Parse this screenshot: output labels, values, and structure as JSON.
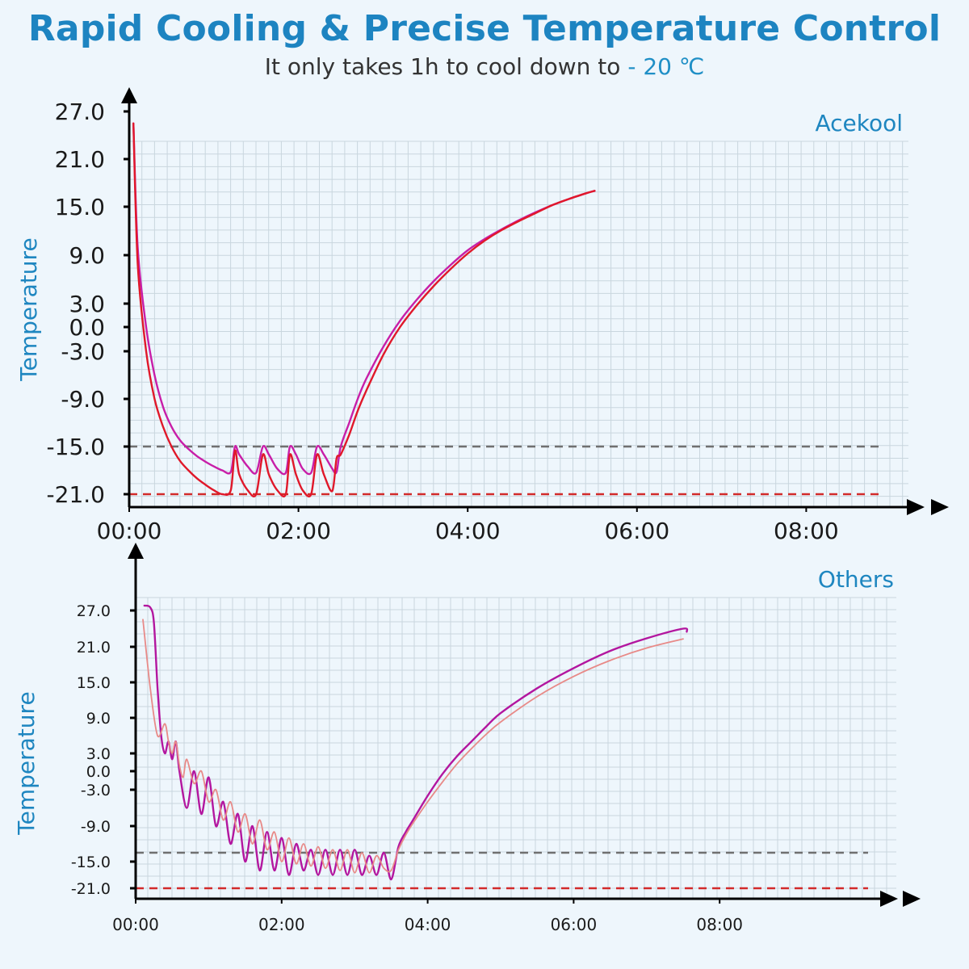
{
  "header": {
    "title": "Rapid Cooling & Precise Temperature Control",
    "subtitle_prefix": "It only takes 1h to cool down to ",
    "subtitle_highlight": "- 20 ℃"
  },
  "colors": {
    "accent": "#1e86c0",
    "grid": "#c9d6de",
    "reference_upper": "#707070",
    "reference_lower": "#d22a2a",
    "acekool_series_a": "#c81ea8",
    "acekool_series_b": "#e0182a",
    "others_series_a": "#b3169f",
    "others_series_b": "#e88a88"
  },
  "chart_data": [
    {
      "type": "line",
      "title": "Acekool",
      "ylabel": "Temperature",
      "xlabel": "",
      "x_unit": "hours",
      "xlim": [
        0,
        9
      ],
      "x_ticks": [
        0,
        2,
        4,
        6,
        8
      ],
      "x_tick_labels": [
        "00:00",
        "02:00",
        "04:00",
        "06:00",
        "08:00"
      ],
      "y_ticks": [
        27.0,
        21.0,
        15.0,
        9.0,
        3.0,
        0.0,
        -3.0,
        -9.0,
        -15.0,
        -21.0
      ],
      "y_tick_labels": [
        "27.0",
        "21.0",
        "15.0",
        "9.0",
        "3.0",
        "0.0",
        "-3.0",
        "-9.0",
        "-15.0",
        "-21.0"
      ],
      "reference_lines": [
        -15.0,
        -21.0
      ],
      "grid": true,
      "series": [
        {
          "color": "#c81ea8",
          "x": [
            0.05,
            0.1,
            0.2,
            0.3,
            0.4,
            0.5,
            0.6,
            0.7,
            0.8,
            0.9,
            1.0,
            1.1,
            1.2,
            1.25,
            1.3,
            1.4,
            1.5,
            1.58,
            1.65,
            1.75,
            1.85,
            1.9,
            1.97,
            2.05,
            2.15,
            2.22,
            2.3,
            2.4,
            2.45,
            2.5,
            2.6,
            2.7,
            2.8,
            3.0,
            3.2,
            3.4,
            3.6,
            3.8,
            4.0,
            4.2,
            4.4,
            4.6,
            4.8,
            5.0,
            5.2,
            5.4,
            5.5
          ],
          "values": [
            25.5,
            10,
            0,
            -6,
            -10,
            -12.5,
            -14.2,
            -15.3,
            -16.2,
            -16.9,
            -17.5,
            -18,
            -18.2,
            -15,
            -16,
            -17.5,
            -18.3,
            -15,
            -16,
            -17.8,
            -18.3,
            -15,
            -16,
            -17.8,
            -18.3,
            -15,
            -16,
            -17.8,
            -18.2,
            -15,
            -12,
            -9,
            -6.5,
            -2.5,
            0.8,
            3.5,
            5.8,
            7.8,
            9.6,
            11.0,
            12.2,
            13.3,
            14.3,
            15.2,
            16.0,
            16.7,
            17.0
          ]
        },
        {
          "color": "#e0182a",
          "x": [
            0.05,
            0.1,
            0.2,
            0.3,
            0.4,
            0.5,
            0.6,
            0.7,
            0.8,
            0.9,
            1.0,
            1.1,
            1.2,
            1.25,
            1.3,
            1.4,
            1.5,
            1.58,
            1.65,
            1.75,
            1.85,
            1.9,
            1.97,
            2.05,
            2.15,
            2.22,
            2.3,
            2.4,
            2.45,
            2.5,
            2.6,
            2.7,
            2.8,
            3.0,
            3.2,
            3.4,
            3.6,
            3.8,
            4.0,
            4.2,
            4.4,
            4.6,
            4.8,
            5.0,
            5.2,
            5.4,
            5.5
          ],
          "values": [
            25.5,
            8,
            -3,
            -9,
            -12.5,
            -15,
            -16.8,
            -18,
            -19,
            -19.8,
            -20.5,
            -21.0,
            -20.5,
            -15.5,
            -18.5,
            -20.5,
            -21.0,
            -16.0,
            -18.5,
            -20.5,
            -21.0,
            -16.0,
            -18.5,
            -20.5,
            -21.0,
            -16.0,
            -18.5,
            -20.6,
            -16.5,
            -16.0,
            -13.5,
            -10.5,
            -8.0,
            -3.5,
            0.0,
            2.8,
            5.2,
            7.3,
            9.2,
            10.8,
            12.1,
            13.2,
            14.2,
            15.2,
            16.0,
            16.7,
            17.0
          ]
        }
      ]
    },
    {
      "type": "line",
      "title": "Others",
      "ylabel": "Temperature",
      "xlabel": "",
      "x_unit": "hours",
      "xlim": [
        0,
        10
      ],
      "x_ticks": [
        0,
        2,
        4,
        6,
        8
      ],
      "x_tick_labels": [
        "00:00",
        "02:00",
        "04:00",
        "06:00",
        "08:00"
      ],
      "y_ticks": [
        27.0,
        21.0,
        15.0,
        9.0,
        3.0,
        0.0,
        -3.0,
        -9.0,
        -15.0,
        -21.0
      ],
      "y_tick_labels": [
        "27.0",
        "21.0",
        "15.0",
        "9.0",
        "3.0",
        "0.0",
        "-3.0",
        "-9.0",
        "-15.0",
        "-21.0"
      ],
      "reference_lines": [
        -13.5,
        -21.0
      ],
      "grid": true,
      "series": [
        {
          "color": "#b3169f",
          "x": [
            0.12,
            0.2,
            0.25,
            0.3,
            0.35,
            0.4,
            0.45,
            0.5,
            0.55,
            0.6,
            0.7,
            0.8,
            0.9,
            1.0,
            1.1,
            1.2,
            1.3,
            1.4,
            1.5,
            1.6,
            1.7,
            1.8,
            1.9,
            2.0,
            2.1,
            2.2,
            2.3,
            2.4,
            2.5,
            2.6,
            2.7,
            2.8,
            2.9,
            3.0,
            3.1,
            3.2,
            3.3,
            3.4,
            3.5,
            3.6,
            3.7,
            3.8,
            4.0,
            4.2,
            4.4,
            4.6,
            4.8,
            5.0,
            5.5,
            6.0,
            6.5,
            7.0,
            7.5,
            7.55
          ],
          "values": [
            27.8,
            27.5,
            25.0,
            14.0,
            6.0,
            3.0,
            5.0,
            2.0,
            5.0,
            0.0,
            -6.0,
            0.0,
            -7.0,
            -1.0,
            -9.0,
            -5.0,
            -12.0,
            -7.0,
            -15.0,
            -9.0,
            -17.0,
            -10.0,
            -17.0,
            -11.0,
            -18.0,
            -12.0,
            -17.0,
            -13.0,
            -18.0,
            -13.0,
            -18.0,
            -13.0,
            -18.0,
            -13.0,
            -18.0,
            -14.0,
            -18.0,
            -13.5,
            -19.0,
            -12.5,
            -10.0,
            -8.0,
            -4.0,
            -0.5,
            2.5,
            5.0,
            7.5,
            9.8,
            14.0,
            17.4,
            20.3,
            22.4,
            24.0,
            23.5
          ]
        },
        {
          "color": "#e88a88",
          "x": [
            0.1,
            0.2,
            0.3,
            0.4,
            0.45,
            0.5,
            0.55,
            0.6,
            0.65,
            0.7,
            0.8,
            0.9,
            1.0,
            1.1,
            1.2,
            1.3,
            1.4,
            1.5,
            1.6,
            1.7,
            1.8,
            1.9,
            2.0,
            2.1,
            2.2,
            2.3,
            2.4,
            2.5,
            2.6,
            2.7,
            2.8,
            2.9,
            3.0,
            3.1,
            3.2,
            3.3,
            3.4,
            3.5,
            3.6,
            3.7,
            3.8,
            4.0,
            4.2,
            4.4,
            4.6,
            4.8,
            5.0,
            5.5,
            6.0,
            6.5,
            7.0,
            7.5
          ],
          "values": [
            25.5,
            14.0,
            6.0,
            8.0,
            5.0,
            3.0,
            5.0,
            1.0,
            -1.0,
            2.0,
            -2.0,
            0.0,
            -5.0,
            -3.0,
            -8.0,
            -5.0,
            -10.0,
            -7.0,
            -12.0,
            -8.0,
            -13.0,
            -10.0,
            -15.0,
            -11.0,
            -15.5,
            -12.0,
            -16.0,
            -12.5,
            -16.5,
            -13.0,
            -17.0,
            -13.0,
            -17.5,
            -13.5,
            -17.5,
            -14.0,
            -16.5,
            -17.0,
            -13.0,
            -10.5,
            -8.5,
            -5.0,
            -1.8,
            1.2,
            3.8,
            6.2,
            8.3,
            12.6,
            16.0,
            18.7,
            20.8,
            22.3
          ]
        }
      ]
    }
  ]
}
